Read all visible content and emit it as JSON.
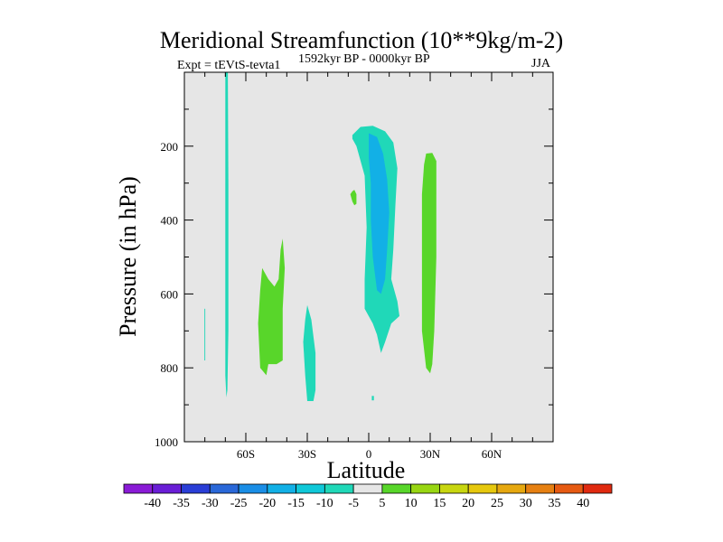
{
  "chart_data": {
    "type": "contour",
    "title": "Meridional Streamfunction (10**9kg/m-2)",
    "experiment_label": "Expt = tEVtS-tevta1",
    "period_label": "1592kyr BP - 0000kyr BP",
    "season_label": "JJA",
    "xlabel": "Latitude",
    "ylabel": "Pressure (in hPa)",
    "x_range": [
      -90,
      90
    ],
    "y_range": [
      1000,
      0
    ],
    "x_ticks": [
      {
        "value": -60,
        "label": "60S"
      },
      {
        "value": -30,
        "label": "30S"
      },
      {
        "value": 0,
        "label": "0"
      },
      {
        "value": 30,
        "label": "30N"
      },
      {
        "value": 60,
        "label": "60N"
      }
    ],
    "y_ticks": [
      {
        "value": 200,
        "label": "200"
      },
      {
        "value": 400,
        "label": "400"
      },
      {
        "value": 600,
        "label": "600"
      },
      {
        "value": 800,
        "label": "800"
      },
      {
        "value": 1000,
        "label": "1000"
      }
    ],
    "colorbar": {
      "labels": [
        "-40",
        "-35",
        "-30",
        "-25",
        "-20",
        "-15",
        "-10",
        "-5",
        "5",
        "10",
        "15",
        "20",
        "25",
        "30",
        "35",
        "40"
      ],
      "colors": [
        "#8a1bd6",
        "#6a1ed6",
        "#2a3ed6",
        "#2a68d8",
        "#1a8ee6",
        "#12b0e6",
        "#10c8d8",
        "#20d8b8",
        "#e6e6e6",
        "#58d62a",
        "#98d612",
        "#c8d610",
        "#e6c80e",
        "#e6a810",
        "#e68012",
        "#e65a12",
        "#e02a10"
      ]
    },
    "contour_regions": [
      {
        "name": "region-north-hadley-core",
        "level": -10,
        "color": "#20d8b8",
        "points": [
          [
            -8,
            170
          ],
          [
            -4,
            148
          ],
          [
            2,
            145
          ],
          [
            8,
            160
          ],
          [
            12,
            190
          ],
          [
            14,
            260
          ],
          [
            13,
            360
          ],
          [
            12,
            480
          ],
          [
            11,
            560
          ],
          [
            14,
            620
          ],
          [
            15,
            660
          ],
          [
            11,
            680
          ],
          [
            8,
            730
          ],
          [
            6,
            760
          ],
          [
            4,
            710
          ],
          [
            2,
            680
          ],
          [
            -2,
            640
          ],
          [
            -2,
            560
          ],
          [
            -1,
            420
          ],
          [
            -2,
            280
          ],
          [
            -6,
            200
          ],
          [
            -8,
            180
          ]
        ]
      },
      {
        "name": "region-north-hadley-inner",
        "level": -15,
        "color": "#12b0e6",
        "points": [
          [
            0,
            165
          ],
          [
            4,
            175
          ],
          [
            7,
            220
          ],
          [
            9,
            290
          ],
          [
            10,
            380
          ],
          [
            9,
            480
          ],
          [
            8,
            560
          ],
          [
            6,
            600
          ],
          [
            4,
            590
          ],
          [
            2,
            500
          ],
          [
            1,
            400
          ],
          [
            1,
            300
          ],
          [
            0,
            230
          ]
        ]
      },
      {
        "name": "region-60s-vertical-strip",
        "level": -10,
        "color": "#20d8b8",
        "points": [
          [
            -70,
            0
          ],
          [
            -68.8,
            0
          ],
          [
            -68.5,
            300
          ],
          [
            -68.5,
            700
          ],
          [
            -69,
            860
          ],
          [
            -69.5,
            880
          ],
          [
            -70,
            820
          ],
          [
            -70,
            500
          ],
          [
            -70,
            200
          ]
        ]
      },
      {
        "name": "region-far-south-strip",
        "level": -10,
        "color": "#20d8b8",
        "points": [
          [
            -80.2,
            640
          ],
          [
            -79.8,
            640
          ],
          [
            -79.8,
            780
          ],
          [
            -80.2,
            780
          ]
        ]
      },
      {
        "name": "region-30s-cell",
        "level": -10,
        "color": "#20d8b8",
        "points": [
          [
            -30,
            630
          ],
          [
            -28,
            670
          ],
          [
            -26,
            760
          ],
          [
            -26,
            860
          ],
          [
            -27,
            890
          ],
          [
            -30,
            890
          ],
          [
            -31,
            820
          ],
          [
            -32,
            730
          ],
          [
            -31,
            670
          ]
        ]
      },
      {
        "name": "region-45s-cell",
        "level": 5,
        "color": "#58d62a",
        "points": [
          [
            -52,
            530
          ],
          [
            -49,
            560
          ],
          [
            -46,
            580
          ],
          [
            -44,
            560
          ],
          [
            -43,
            480
          ],
          [
            -42,
            450
          ],
          [
            -41,
            530
          ],
          [
            -42,
            640
          ],
          [
            -42,
            780
          ],
          [
            -45,
            790
          ],
          [
            -49,
            790
          ],
          [
            -50,
            820
          ],
          [
            -53,
            800
          ],
          [
            -54,
            680
          ],
          [
            -53,
            590
          ]
        ]
      },
      {
        "name": "region-10s-small-cell",
        "level": 5,
        "color": "#58d62a",
        "points": [
          [
            -8,
            322
          ],
          [
            -7,
            318
          ],
          [
            -6,
            330
          ],
          [
            -6,
            356
          ],
          [
            -7,
            360
          ],
          [
            -8,
            350
          ],
          [
            -9,
            330
          ]
        ]
      },
      {
        "name": "region-30n-cell",
        "level": 5,
        "color": "#58d62a",
        "points": [
          [
            28,
            220
          ],
          [
            31,
            218
          ],
          [
            33,
            240
          ],
          [
            33,
            500
          ],
          [
            32,
            700
          ],
          [
            31,
            790
          ],
          [
            30,
            815
          ],
          [
            28,
            800
          ],
          [
            26,
            700
          ],
          [
            26,
            500
          ],
          [
            26,
            330
          ],
          [
            27,
            250
          ]
        ]
      },
      {
        "name": "region-equator-dot",
        "level": -5,
        "color": "#20d8b8",
        "points": [
          [
            1.5,
            876
          ],
          [
            2.5,
            876
          ],
          [
            2.5,
            888
          ],
          [
            1.5,
            888
          ]
        ]
      }
    ]
  }
}
